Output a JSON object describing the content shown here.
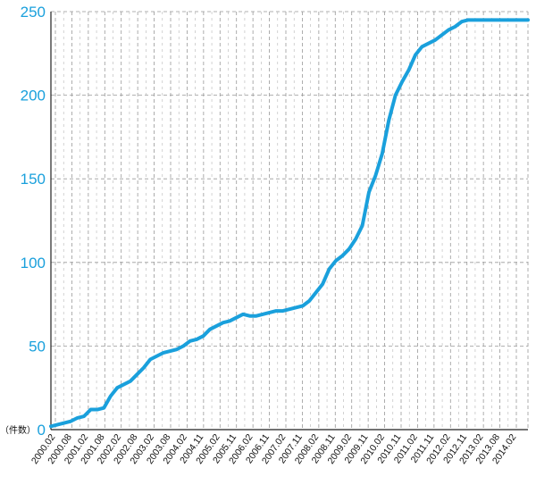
{
  "chart_data": {
    "type": "line",
    "title": "",
    "xlabel": "",
    "ylabel": "",
    "unit_label": "（件数）",
    "ylim": [
      0,
      250
    ],
    "yticks": [
      "0",
      "50",
      "100",
      "150",
      "200",
      "250"
    ],
    "grid": true,
    "line_color": "#1aa0dc",
    "grid_color": "#999999",
    "x_tick_labels": [
      "2000.02",
      "2000.08",
      "2001.02",
      "2001.08",
      "2002.02",
      "2002.08",
      "2003.02",
      "2003.08",
      "2004.02",
      "2004.11",
      "2005.02",
      "2005.11",
      "2006.02",
      "2006.11",
      "2007.02",
      "2007.11",
      "2008.02",
      "2008.11",
      "2009.02",
      "2009.11",
      "2010.02",
      "2010.11",
      "2011.02",
      "2011.11",
      "2012.02",
      "2012.11",
      "2013.02",
      "2013.08",
      "2014.02"
    ],
    "series": [
      {
        "x": [
          2000.0,
          2000.2,
          2000.4,
          2000.6,
          2000.8,
          2001.0,
          2001.2,
          2001.4,
          2001.6,
          2001.8,
          2002.0,
          2002.2,
          2002.4,
          2002.6,
          2002.8,
          2003.0,
          2003.2,
          2003.4,
          2003.6,
          2003.8,
          2004.0,
          2004.2,
          2004.4,
          2004.6,
          2004.8,
          2005.0,
          2005.2,
          2005.4,
          2005.6,
          2005.8,
          2006.0,
          2006.2,
          2006.4,
          2006.6,
          2006.8,
          2007.0,
          2007.2,
          2007.4,
          2007.6,
          2007.8,
          2008.0,
          2008.2,
          2008.4,
          2008.6,
          2008.8,
          2009.0,
          2009.2,
          2009.4,
          2009.6,
          2009.8,
          2010.0,
          2010.2,
          2010.4,
          2010.6,
          2010.8,
          2011.0,
          2011.2,
          2011.4,
          2011.6,
          2011.8,
          2012.0,
          2012.2,
          2012.4,
          2012.6,
          2012.8,
          2013.0,
          2013.2,
          2013.4,
          2013.6,
          2013.8,
          2014.0,
          2014.2,
          2014.4
        ],
        "values": [
          2,
          3,
          4,
          5,
          7,
          8,
          12,
          12,
          13,
          20,
          25,
          27,
          29,
          33,
          37,
          42,
          44,
          46,
          47,
          48,
          50,
          53,
          54,
          56,
          60,
          62,
          64,
          65,
          67,
          69,
          68,
          68,
          69,
          70,
          71,
          71,
          72,
          73,
          74,
          77,
          82,
          87,
          96,
          101,
          104,
          108,
          114,
          122,
          142,
          152,
          165,
          185,
          200,
          208,
          215,
          224,
          229,
          231,
          233,
          236,
          239,
          241,
          244,
          245,
          245,
          245,
          245,
          245,
          245,
          245,
          245,
          245,
          245
        ]
      }
    ]
  }
}
